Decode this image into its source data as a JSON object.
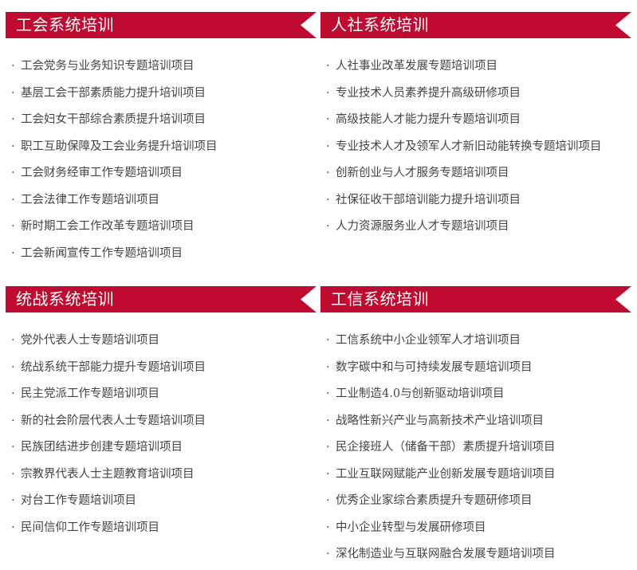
{
  "sections": [
    {
      "title": "工会系统培训",
      "items": [
        "工会党务与业务知识专题培训项目",
        "基层工会干部素质能力提升培训项目",
        "工会妇女干部综合素质提升培训项目",
        "职工互助保障及工会业务提升培训项目",
        "工会财务经审工作专题培训项目",
        "工会法律工作专题培训项目",
        "新时期工会工作改革专题培训项目",
        "工会新闻宣传工作专题培训项目"
      ]
    },
    {
      "title": "人社系统培训",
      "items": [
        "人社事业改革发展专题培训项目",
        "专业技术人员素养提升高级研修项目",
        "高级技能人才能力提升专题培训项目",
        "专业技术人才及领军人才新旧动能转换专题培训项目",
        "创新创业与人才服务专题培训项目",
        "社保征收干部培训能力提升培训项目",
        "人力资源服务业人才专题培训项目"
      ]
    },
    {
      "title": "统战系统培训",
      "items": [
        "党外代表人士专题培训项目",
        "统战系统干部能力提升专题培训项目",
        "民主党派工作专题培训项目",
        "新的社会阶层代表人士专题培训项目",
        "民族团结进步创建专题培训项目",
        "宗教界代表人士主题教育培训项目",
        "对台工作专题培训项目",
        "民间信仰工作专题培训项目"
      ]
    },
    {
      "title": "工信系统培训",
      "items": [
        "工信系统中小企业领军人才培训项目",
        "数字碳中和与可持续发展专题培训项目",
        "工业制造4.0与创新驱动培训项目",
        "战略性新兴产业与高新技术产业培训项目",
        "民企接班人（储备干部）素质提升培训项目",
        "工业互联网赋能产业创新发展专题培训项目",
        "优秀企业家综合素质提升专题研修项目",
        "中小企业转型与发展研修项目",
        "深化制造业与互联网融合发展专题培训项目"
      ]
    }
  ],
  "colors": {
    "banner": "#bf0b30",
    "text": "#444444"
  }
}
